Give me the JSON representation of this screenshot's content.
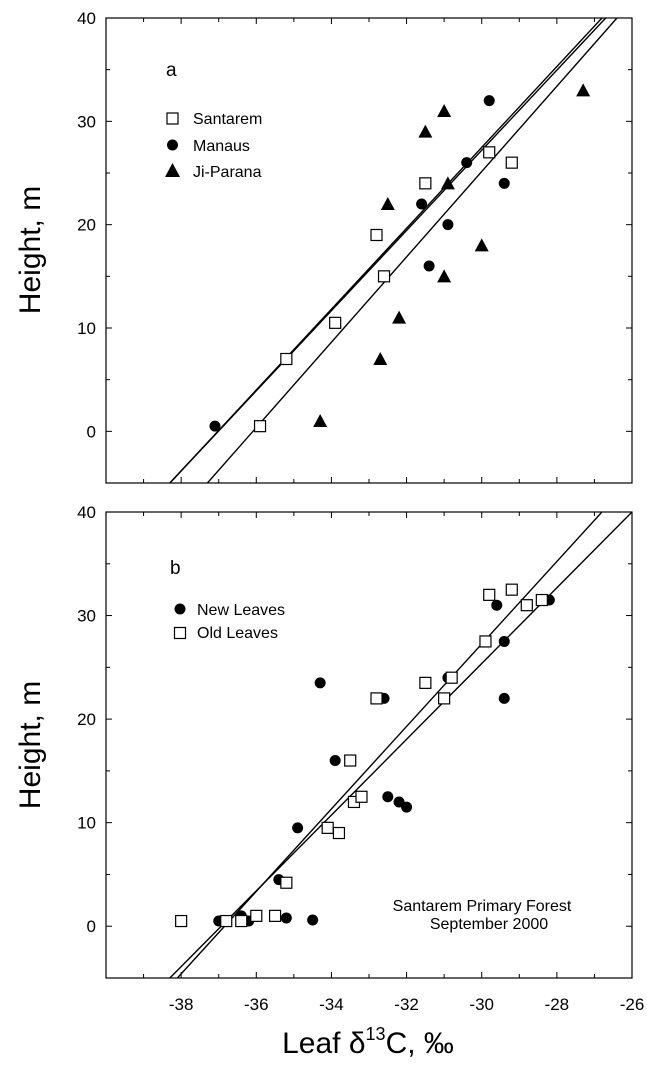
{
  "x_axis": {
    "label_prefix": "Leaf δ",
    "label_superscript": "13",
    "label_suffix": "C, ‰",
    "range": [
      -40,
      -26
    ],
    "ticks": [
      -38,
      -36,
      -34,
      -32,
      -30,
      -28,
      -26
    ],
    "tick_labels": [
      "-38",
      "-36",
      "-34",
      "-32",
      "-30",
      "-28",
      "-26"
    ]
  },
  "chart_data": [
    {
      "type": "scatter",
      "panel_label": "a",
      "ylabel": "Height, m",
      "ylim": [
        -5,
        40
      ],
      "yticks": [
        0,
        10,
        20,
        30,
        40
      ],
      "ytick_labels": [
        "0",
        "10",
        "20",
        "30",
        "40"
      ],
      "xlim": [
        -40,
        -26
      ],
      "legend_position": "upper-left",
      "series": [
        {
          "name": "Santarem",
          "marker": "open-square",
          "x": [
            -35.9,
            -35.2,
            -33.9,
            -32.8,
            -32.6,
            -31.5,
            -29.8,
            -29.2
          ],
          "y": [
            0.5,
            7,
            10.5,
            19,
            15,
            24,
            27,
            26
          ]
        },
        {
          "name": "Manaus",
          "marker": "filled-circle",
          "x": [
            -37.1,
            -31.6,
            -31.4,
            -30.9,
            -30.4,
            -29.8,
            -29.4
          ],
          "y": [
            0.5,
            22,
            16,
            20,
            26,
            32,
            24
          ]
        },
        {
          "name": "Ji-Parana",
          "marker": "filled-triangle",
          "x": [
            -34.3,
            -32.7,
            -32.5,
            -32.2,
            -31.5,
            -31.0,
            -31.0,
            -30.9,
            -30.0,
            -27.3
          ],
          "y": [
            1,
            7,
            22,
            11,
            29,
            31,
            15,
            24,
            18,
            33
          ]
        }
      ],
      "fit_lines": [
        {
          "x": [
            -38.3,
            -26.7
          ],
          "y": [
            -5,
            40
          ]
        },
        {
          "x": [
            -38.3,
            -26.8
          ],
          "y": [
            -5,
            40
          ]
        },
        {
          "x": [
            -37.3,
            -26.4
          ],
          "y": [
            -5,
            40
          ]
        }
      ]
    },
    {
      "type": "scatter",
      "panel_label": "b",
      "ylabel": "Height, m",
      "ylim": [
        -5,
        40
      ],
      "yticks": [
        0,
        10,
        20,
        30,
        40
      ],
      "ytick_labels": [
        "0",
        "10",
        "20",
        "30",
        "40"
      ],
      "xlim": [
        -40,
        -26
      ],
      "legend_position": "upper-left",
      "annotation_lines": [
        "Santarem Primary Forest",
        "September 2000"
      ],
      "series": [
        {
          "name": "New Leaves",
          "marker": "filled-circle",
          "x": [
            -37.0,
            -36.4,
            -36.2,
            -35.4,
            -35.2,
            -34.9,
            -34.5,
            -34.3,
            -33.9,
            -32.6,
            -32.5,
            -32.2,
            -32.0,
            -30.9,
            -29.6,
            -29.4,
            -29.4,
            -28.2
          ],
          "y": [
            0.5,
            1,
            0.5,
            4.5,
            0.8,
            9.5,
            0.6,
            23.5,
            16,
            22,
            12.5,
            12,
            11.5,
            24,
            31,
            27.5,
            22,
            31.5
          ]
        },
        {
          "name": "Old Leaves",
          "marker": "open-square",
          "x": [
            -38.0,
            -36.8,
            -36.4,
            -36.0,
            -35.5,
            -35.2,
            -34.1,
            -33.8,
            -33.5,
            -33.4,
            -33.2,
            -32.8,
            -31.5,
            -31.0,
            -30.8,
            -29.9,
            -29.8,
            -29.2,
            -28.8,
            -28.4
          ],
          "y": [
            0.5,
            0.5,
            0.5,
            1,
            1,
            4.2,
            9.5,
            9,
            16,
            12,
            12.5,
            22,
            23.5,
            22,
            24,
            27.5,
            32,
            32.5,
            31,
            31.5
          ]
        }
      ],
      "fit_lines": [
        {
          "x": [
            -38.3,
            -26.0
          ],
          "y": [
            -5,
            40
          ]
        },
        {
          "x": [
            -38.1,
            -26.8
          ],
          "y": [
            -5,
            40
          ]
        }
      ]
    }
  ]
}
